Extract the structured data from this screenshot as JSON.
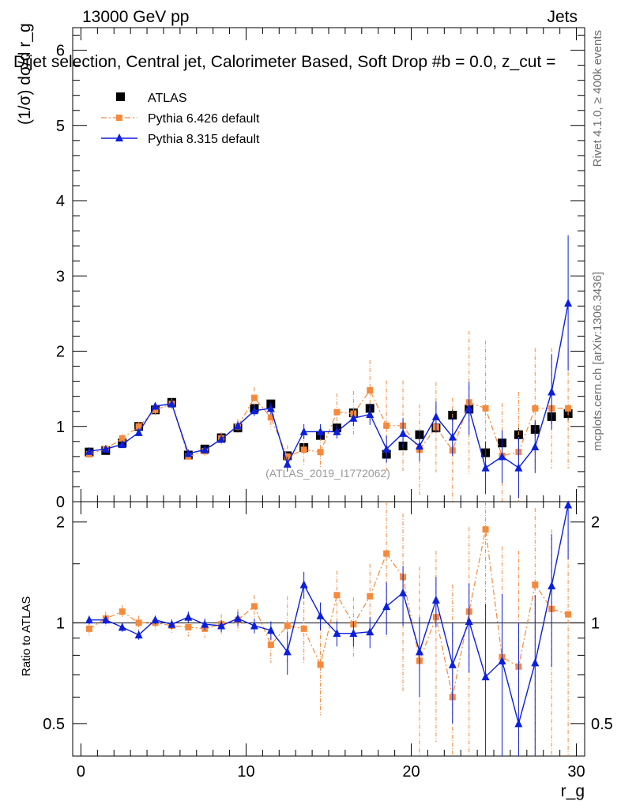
{
  "header": {
    "energy_label": "13000 GeV pp",
    "category_label": "Jets"
  },
  "side_labels": {
    "rivet": "Rivet 4.1.0, ≥ 400k events",
    "mcplots": "mcplots.cern.ch [arXiv:1306.3436]"
  },
  "chart_data": [
    {
      "type": "scatter",
      "title": "Dijet selection, Central jet, Calorimeter Based, Soft Drop #b = 0.0, z_cut =",
      "xlabel": "r_g",
      "ylabel": "(1/σ) dσ/d r_g",
      "xlim": [
        -0.5,
        30.5
      ],
      "ylim": [
        0,
        6.3
      ],
      "yticks": [
        0,
        1,
        2,
        3,
        4,
        5,
        6
      ],
      "xticks": [
        0,
        10,
        20,
        30
      ],
      "watermark": "(ATLAS_2019_I1772062)",
      "legend": {
        "position": "top-left",
        "entries": [
          "ATLAS",
          "Pythia 6.426 default",
          "Pythia 8.315 default"
        ]
      },
      "x": [
        0.5,
        1.5,
        2.5,
        3.5,
        4.5,
        5.5,
        6.5,
        7.5,
        8.5,
        9.5,
        10.5,
        11.5,
        12.5,
        13.5,
        14.5,
        15.5,
        16.5,
        17.5,
        18.5,
        19.5,
        20.5,
        21.5,
        22.5,
        23.5,
        24.5,
        25.5,
        26.5,
        27.5,
        28.5,
        29.5
      ],
      "series": [
        {
          "name": "ATLAS",
          "color": "#000000",
          "values": [
            0.66,
            0.68,
            0.78,
            1.0,
            1.22,
            1.32,
            0.62,
            0.7,
            0.85,
            0.98,
            1.24,
            1.3,
            0.61,
            0.72,
            0.88,
            0.98,
            1.18,
            1.24,
            0.63,
            0.74,
            0.89,
            0.98,
            1.15,
            1.23,
            0.65,
            0.78,
            0.89,
            0.96,
            1.13,
            1.17
          ],
          "errors": [
            0.03,
            0.03,
            0.03,
            0.04,
            0.04,
            0.04,
            0.03,
            0.03,
            0.04,
            0.04,
            0.05,
            0.05,
            0.04,
            0.04,
            0.05,
            0.05,
            0.05,
            0.06,
            0.06,
            0.06,
            0.07,
            0.07,
            0.08,
            0.08,
            0.08,
            0.09,
            0.09,
            0.09,
            0.1,
            0.1
          ]
        },
        {
          "name": "Pythia 6.426 default",
          "color": "#f58a3c",
          "values": [
            0.63,
            0.7,
            0.84,
            1.0,
            1.22,
            1.3,
            0.6,
            0.67,
            0.84,
            1.0,
            1.38,
            1.12,
            0.6,
            0.69,
            0.66,
            1.19,
            1.17,
            1.48,
            1.01,
            1.01,
            0.69,
            0.99,
            0.68,
            1.32,
            1.24,
            0.61,
            0.66,
            1.24,
            1.24,
            1.24
          ],
          "errors": [
            0.05,
            0.05,
            0.06,
            0.06,
            0.07,
            0.07,
            0.05,
            0.06,
            0.08,
            0.1,
            0.14,
            0.16,
            0.15,
            0.2,
            0.2,
            0.25,
            0.3,
            0.4,
            0.6,
            0.6,
            0.6,
            0.6,
            0.7,
            0.95,
            0.9,
            0.7,
            0.8,
            0.8,
            0.8,
            0.8
          ]
        },
        {
          "name": "Pythia 8.315 default",
          "color": "#0b1fdc",
          "values": [
            0.67,
            0.7,
            0.76,
            0.92,
            1.27,
            1.3,
            0.64,
            0.69,
            0.83,
            1.01,
            1.21,
            1.24,
            0.5,
            0.93,
            0.93,
            0.93,
            1.11,
            1.16,
            0.7,
            0.91,
            0.74,
            1.13,
            0.86,
            1.24,
            0.45,
            0.6,
            0.45,
            0.73,
            1.46,
            2.64
          ],
          "errors": [
            0.04,
            0.04,
            0.04,
            0.05,
            0.05,
            0.05,
            0.04,
            0.04,
            0.05,
            0.06,
            0.07,
            0.08,
            0.1,
            0.1,
            0.1,
            0.09,
            0.1,
            0.14,
            0.18,
            0.2,
            0.2,
            0.2,
            0.25,
            0.35,
            0.35,
            0.35,
            0.4,
            0.35,
            0.5,
            0.9
          ]
        }
      ]
    },
    {
      "type": "scatter",
      "title": "",
      "xlabel": "r_g",
      "ylabel": "Ratio to ATLAS",
      "yscale": "log",
      "xlim": [
        -0.5,
        30.5
      ],
      "ylim": [
        0.4,
        2.3
      ],
      "yticks": [
        0.5,
        1,
        2
      ],
      "xticks": [
        0,
        10,
        20,
        30
      ],
      "x": [
        0.5,
        1.5,
        2.5,
        3.5,
        4.5,
        5.5,
        6.5,
        7.5,
        8.5,
        9.5,
        10.5,
        11.5,
        12.5,
        13.5,
        14.5,
        15.5,
        16.5,
        17.5,
        18.5,
        19.5,
        20.5,
        21.5,
        22.5,
        23.5,
        24.5,
        25.5,
        26.5,
        27.5,
        28.5,
        29.5
      ],
      "series": [
        {
          "name": "Pythia 6.426 default",
          "color": "#f58a3c",
          "values": [
            0.96,
            1.03,
            1.08,
            1.0,
            1.0,
            0.98,
            0.97,
            0.96,
            0.99,
            1.02,
            1.12,
            0.86,
            0.98,
            0.96,
            0.75,
            1.21,
            0.99,
            1.2,
            1.61,
            1.37,
            0.77,
            1.04,
            0.6,
            1.08,
            1.9,
            0.79,
            0.74,
            1.3,
            1.1,
            1.06
          ],
          "errors": [
            0.05,
            0.05,
            0.05,
            0.05,
            0.05,
            0.05,
            0.06,
            0.06,
            0.07,
            0.08,
            0.09,
            0.1,
            0.22,
            0.2,
            0.22,
            0.22,
            0.2,
            0.3,
            0.7,
            0.75,
            0.7,
            0.6,
            0.7,
            0.85,
            0.9,
            0.9,
            0.9,
            0.9,
            0.8,
            0.8
          ]
        },
        {
          "name": "Pythia 8.315 default",
          "color": "#0b1fdc",
          "values": [
            1.02,
            1.02,
            0.97,
            0.92,
            1.02,
            0.99,
            1.04,
            0.99,
            0.98,
            1.03,
            0.98,
            0.95,
            0.82,
            1.3,
            1.05,
            0.93,
            0.93,
            0.94,
            1.12,
            1.23,
            0.82,
            1.17,
            0.75,
            1.01,
            0.69,
            0.77,
            0.5,
            0.76,
            1.29,
            2.25
          ],
          "errors": [
            0.03,
            0.03,
            0.03,
            0.03,
            0.03,
            0.03,
            0.04,
            0.04,
            0.04,
            0.05,
            0.05,
            0.06,
            0.12,
            0.12,
            0.1,
            0.08,
            0.08,
            0.1,
            0.2,
            0.25,
            0.22,
            0.2,
            0.25,
            0.3,
            0.45,
            0.45,
            0.5,
            0.45,
            0.55,
            0.7
          ]
        }
      ]
    }
  ]
}
